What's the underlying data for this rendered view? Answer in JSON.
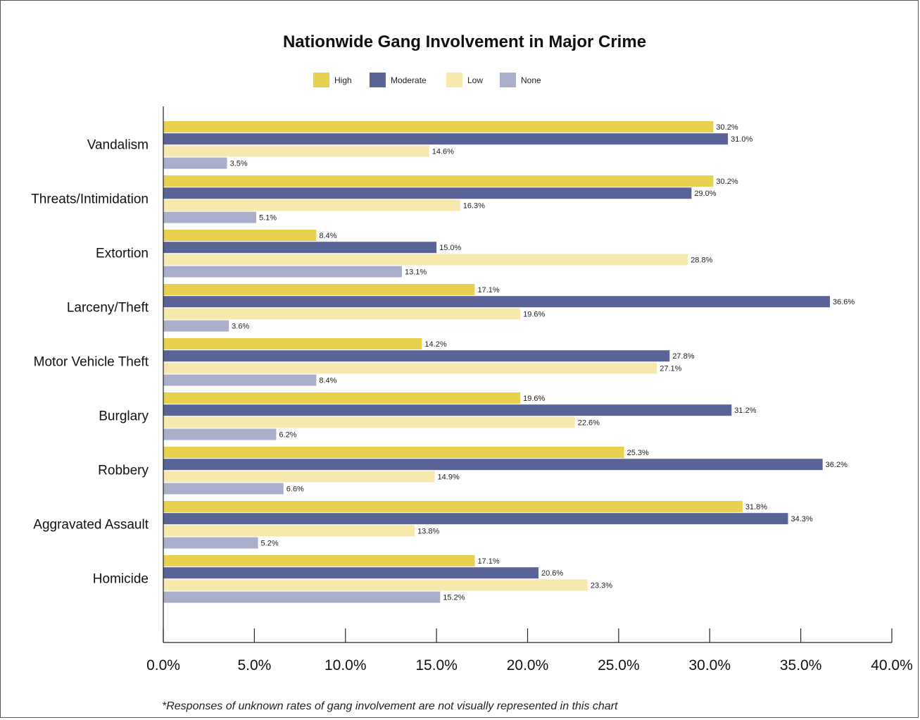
{
  "chart_data": {
    "type": "bar",
    "orientation": "horizontal",
    "title": "Nationwide Gang Involvement in Major Crime",
    "categories": [
      "Vandalism",
      "Threats/Intimidation",
      "Extortion",
      "Larceny/Theft",
      "Motor Vehicle Theft",
      "Burglary",
      "Robbery",
      "Aggravated Assault",
      "Homicide"
    ],
    "series": [
      {
        "name": "High",
        "color": "#e8d14f",
        "values": [
          30.2,
          30.2,
          8.4,
          17.1,
          14.2,
          19.6,
          25.3,
          31.8,
          17.1
        ]
      },
      {
        "name": "Moderate",
        "color": "#5a6396",
        "values": [
          31.0,
          29.0,
          15.0,
          36.6,
          27.8,
          31.2,
          36.2,
          34.3,
          20.6
        ]
      },
      {
        "name": "Low",
        "color": "#f7e9ae",
        "values": [
          14.6,
          16.3,
          28.8,
          19.6,
          27.1,
          22.6,
          14.9,
          13.8,
          23.3
        ]
      },
      {
        "name": "None",
        "color": "#a9afca",
        "values": [
          3.5,
          5.1,
          13.1,
          3.6,
          8.4,
          6.2,
          6.6,
          5.2,
          15.2
        ]
      }
    ],
    "value_suffix": "%",
    "xlim": [
      0,
      40
    ],
    "xticks": [
      "0.0%",
      "5.0%",
      "10.0%",
      "15.0%",
      "20.0%",
      "25.0%",
      "30.0%",
      "35.0%",
      "40.0%"
    ],
    "xlabel": "",
    "ylabel": "",
    "grid": false,
    "legend_position": "top-center",
    "footnote": "*Responses of unknown rates of gang involvement are not visually represented in this chart"
  }
}
